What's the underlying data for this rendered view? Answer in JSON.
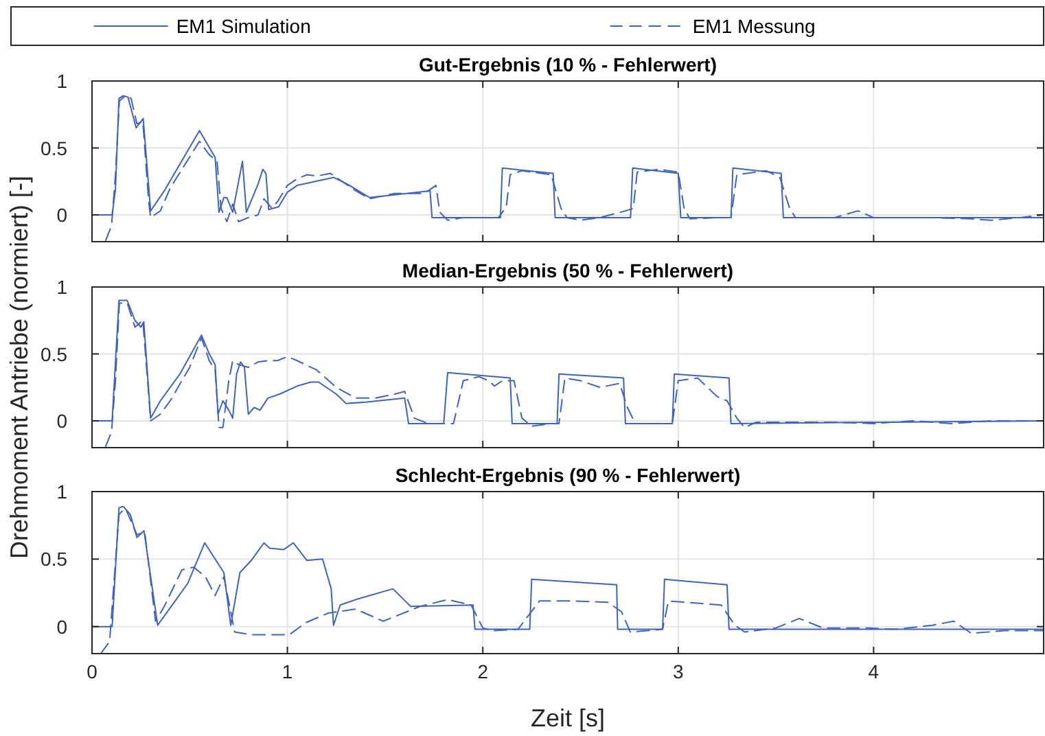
{
  "chart_data": [
    {
      "type": "line",
      "title": "Gut-Ergebnis (10 % - Fehlerwert)",
      "xlim": [
        0,
        4.87
      ],
      "xticks": [
        0,
        1,
        2,
        3,
        4
      ],
      "ylim": [
        -0.2,
        1
      ],
      "yticks": [
        0,
        0.5,
        1
      ],
      "grid": true,
      "tick_labels": "y",
      "legend": "top",
      "marker": "none",
      "series": [
        {
          "name": "EM1 Simulation",
          "color": "#4062b8",
          "line_style": "solid",
          "x": [
            0,
            0.103,
            0.12,
            0.138,
            0.16,
            0.184,
            0.226,
            0.262,
            0.3,
            0.37,
            0.55,
            0.63,
            0.65,
            0.675,
            0.69,
            0.72,
            0.77,
            0.79,
            0.85,
            0.874,
            0.89,
            0.904,
            0.955,
            1.0,
            1.05,
            1.236,
            1.306,
            1.42,
            1.73,
            1.74,
            2.09,
            2.1,
            2.36,
            2.37,
            2.756,
            2.767,
            3.0,
            3.013,
            3.27,
            3.28,
            3.527,
            3.538,
            4.87
          ],
          "values": [
            0,
            0,
            0.19,
            0.87,
            0.89,
            0.88,
            0.65,
            0.72,
            0.03,
            0.18,
            0.63,
            0.43,
            0.02,
            0.13,
            0.13,
            0.02,
            0.4,
            0.02,
            0.23,
            0.34,
            0.31,
            0.04,
            0.06,
            0.17,
            0.22,
            0.28,
            0.23,
            0.13,
            0.18,
            -0.02,
            -0.02,
            0.35,
            0.31,
            -0.02,
            -0.02,
            0.35,
            0.31,
            -0.02,
            -0.02,
            0.35,
            0.31,
            -0.02,
            -0.02
          ]
        },
        {
          "name": "EM1 Messung",
          "color": "#4062b8",
          "line_style": "dashed",
          "x": [
            0.07,
            0.1,
            0.12,
            0.14,
            0.17,
            0.2,
            0.23,
            0.26,
            0.29,
            0.3,
            0.35,
            0.4,
            0.55,
            0.6,
            0.64,
            0.66,
            0.69,
            0.72,
            0.75,
            0.8,
            0.85,
            0.88,
            0.92,
            0.95,
            1.0,
            1.05,
            1.1,
            1.15,
            1.22,
            1.28,
            1.35,
            1.42,
            1.55,
            1.7,
            1.76,
            1.78,
            1.82,
            1.9,
            2.0,
            2.08,
            2.12,
            2.14,
            2.2,
            2.35,
            2.4,
            2.43,
            2.5,
            2.6,
            2.73,
            2.77,
            2.79,
            2.9,
            3.0,
            3.03,
            3.06,
            3.2,
            3.27,
            3.3,
            3.45,
            3.52,
            3.57,
            3.6,
            3.8,
            3.92,
            4.0,
            4.3,
            4.5,
            4.6,
            4.75,
            4.87
          ],
          "values": [
            -0.19,
            -0.08,
            0.3,
            0.85,
            0.89,
            0.87,
            0.68,
            0.7,
            0.1,
            -0.02,
            0.03,
            0.2,
            0.55,
            0.45,
            0.4,
            0.05,
            -0.05,
            0.08,
            -0.05,
            -0.02,
            0,
            0.12,
            0.05,
            0.1,
            0.22,
            0.27,
            0.3,
            0.29,
            0.31,
            0.25,
            0.18,
            0.12,
            0.16,
            0.16,
            0.22,
            0.02,
            -0.04,
            -0.02,
            -0.02,
            -0.02,
            0.06,
            0.3,
            0.33,
            0.3,
            0.05,
            -0.02,
            -0.04,
            -0.02,
            0.03,
            0.05,
            0.32,
            0.34,
            0.32,
            0.05,
            -0.03,
            -0.02,
            -0.02,
            0.3,
            0.33,
            0.28,
            0.05,
            -0.02,
            -0.02,
            0.03,
            -0.02,
            -0.02,
            -0.03,
            -0.04,
            -0.02,
            0
          ]
        }
      ]
    },
    {
      "type": "line",
      "title": "Median-Ergebnis (50 % - Fehlerwert)",
      "ylabel": "Drehmoment Antriebe (normiert) [-]",
      "xlim": [
        0,
        4.87
      ],
      "xticks": [
        0,
        1,
        2,
        3,
        4
      ],
      "ylim": [
        -0.2,
        1
      ],
      "yticks": [
        0,
        0.5,
        1
      ],
      "grid": true,
      "tick_labels": "y",
      "marker": "none",
      "series": [
        {
          "color": "#4062b8",
          "line_style": "solid",
          "x": [
            0,
            0.103,
            0.138,
            0.18,
            0.22,
            0.25,
            0.265,
            0.3,
            0.35,
            0.45,
            0.56,
            0.6,
            0.63,
            0.645,
            0.67,
            0.7,
            0.72,
            0.74,
            0.76,
            0.78,
            0.8,
            0.83,
            0.86,
            0.9,
            0.96,
            1.05,
            1.12,
            1.16,
            1.25,
            1.3,
            1.4,
            1.6,
            1.62,
            1.8,
            1.82,
            2.14,
            2.15,
            2.38,
            2.39,
            2.72,
            2.73,
            2.97,
            2.98,
            3.26,
            3.27,
            4.87
          ],
          "values": [
            0,
            0,
            0.9,
            0.9,
            0.75,
            0.7,
            0.74,
            0.02,
            0.15,
            0.35,
            0.64,
            0.5,
            0.42,
            0.05,
            0.15,
            0.08,
            0.02,
            0.35,
            0.44,
            0.4,
            0.05,
            0.1,
            0.08,
            0.17,
            0.2,
            0.26,
            0.29,
            0.29,
            0.2,
            0.13,
            0.14,
            0.17,
            -0.02,
            -0.02,
            0.36,
            0.32,
            -0.02,
            -0.02,
            0.35,
            0.32,
            -0.02,
            -0.02,
            0.35,
            0.32,
            -0.02,
            0
          ]
        },
        {
          "color": "#4062b8",
          "line_style": "dashed",
          "x": [
            0.07,
            0.1,
            0.12,
            0.14,
            0.18,
            0.22,
            0.26,
            0.29,
            0.3,
            0.35,
            0.4,
            0.5,
            0.56,
            0.6,
            0.63,
            0.65,
            0.67,
            0.7,
            0.72,
            0.75,
            0.8,
            0.85,
            0.9,
            0.95,
            1.0,
            1.05,
            1.15,
            1.25,
            1.35,
            1.45,
            1.55,
            1.6,
            1.65,
            1.72,
            1.85,
            1.9,
            1.98,
            2.03,
            2.06,
            2.1,
            2.16,
            2.2,
            2.25,
            2.35,
            2.39,
            2.42,
            2.5,
            2.6,
            2.7,
            2.74,
            2.78,
            2.9,
            2.97,
            3.0,
            3.1,
            3.2,
            3.25,
            3.3,
            3.34,
            3.4,
            3.6,
            3.8,
            4.0,
            4.2,
            4.4,
            4.6,
            4.87
          ],
          "values": [
            -0.19,
            -0.08,
            0.3,
            0.88,
            0.88,
            0.7,
            0.75,
            0.2,
            0,
            0.05,
            0.15,
            0.4,
            0.62,
            0.45,
            0.38,
            -0.05,
            -0.05,
            0.3,
            0.45,
            0.42,
            0.4,
            0.44,
            0.45,
            0.45,
            0.48,
            0.45,
            0.38,
            0.25,
            0.17,
            0.17,
            0.2,
            0.22,
            0.02,
            -0.02,
            -0.02,
            0.3,
            0.33,
            0.3,
            0.26,
            0.3,
            0.3,
            0.02,
            -0.04,
            -0.02,
            -0.02,
            0.32,
            0.3,
            0.25,
            0.28,
            0.1,
            -0.02,
            -0.02,
            -0.02,
            0.3,
            0.32,
            0.18,
            0.15,
            0.02,
            -0.05,
            -0.01,
            -0.01,
            -0.01,
            -0.02,
            0,
            -0.02,
            0,
            0
          ]
        }
      ]
    },
    {
      "type": "line",
      "title": "Schlecht-Ergebnis (90 % - Fehlerwert)",
      "xlabel": "Zeit [s]",
      "xlim": [
        0,
        4.87
      ],
      "xticks": [
        0,
        1,
        2,
        3,
        4
      ],
      "ylim": [
        -0.2,
        1
      ],
      "yticks": [
        0,
        0.5,
        1
      ],
      "grid": true,
      "marker": "none",
      "series": [
        {
          "color": "#4062b8",
          "line_style": "solid",
          "x": [
            0,
            0.103,
            0.138,
            0.16,
            0.196,
            0.23,
            0.266,
            0.336,
            0.49,
            0.577,
            0.675,
            0.71,
            0.757,
            0.815,
            0.88,
            0.91,
            0.98,
            1.03,
            1.1,
            1.18,
            1.224,
            1.236,
            1.27,
            1.35,
            1.54,
            1.63,
            1.95,
            1.96,
            2.24,
            2.25,
            2.685,
            2.69,
            2.92,
            2.93,
            3.25,
            3.26,
            4.87
          ],
          "values": [
            0,
            0,
            0.88,
            0.89,
            0.83,
            0.66,
            0.71,
            0.01,
            0.32,
            0.62,
            0.4,
            0.01,
            0.4,
            0.49,
            0.62,
            0.58,
            0.57,
            0.62,
            0.49,
            0.5,
            0.28,
            0.01,
            0.16,
            0.2,
            0.28,
            0.15,
            0.16,
            -0.02,
            -0.02,
            0.35,
            0.31,
            -0.02,
            -0.02,
            0.35,
            0.31,
            -0.02,
            -0.02
          ]
        },
        {
          "color": "#4062b8",
          "line_style": "dashed",
          "x": [
            0.045,
            0.09,
            0.138,
            0.17,
            0.23,
            0.27,
            0.325,
            0.37,
            0.46,
            0.52,
            0.58,
            0.63,
            0.675,
            0.73,
            0.815,
            1.01,
            1.095,
            1.21,
            1.35,
            1.49,
            1.68,
            1.82,
            1.94,
            2.0,
            2.05,
            2.18,
            2.29,
            2.47,
            2.64,
            2.71,
            2.755,
            2.92,
            2.95,
            3.22,
            3.29,
            3.34,
            3.5,
            3.62,
            3.74,
            3.97,
            4.11,
            4.3,
            4.41,
            4.5,
            4.67,
            4.87
          ],
          "values": [
            -0.2,
            -0.11,
            0.83,
            0.88,
            0.68,
            0.7,
            0.04,
            0.15,
            0.42,
            0.44,
            0.37,
            0.23,
            0.37,
            -0.04,
            -0.06,
            -0.06,
            0.03,
            0.1,
            0.13,
            0.04,
            0.15,
            0.2,
            0.16,
            -0.01,
            -0.03,
            -0.02,
            0.19,
            0.19,
            0.18,
            0.11,
            -0.04,
            -0.02,
            0.19,
            0.16,
            0.01,
            -0.04,
            -0.01,
            0.06,
            -0.01,
            -0.01,
            -0.02,
            0.01,
            0.04,
            -0.05,
            -0.03,
            -0.03
          ]
        }
      ]
    }
  ]
}
